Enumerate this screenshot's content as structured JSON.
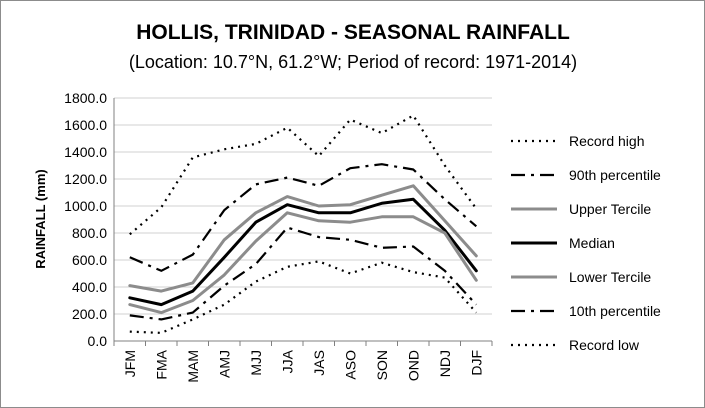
{
  "chart_data": {
    "type": "line",
    "title": "HOLLIS, TRINIDAD - SEASONAL RAINFALL",
    "subtitle": "(Location: 10.7°N, 61.2°W; Period of record: 1971-2014)",
    "xlabel": "",
    "ylabel": "RAINFALL (mm)",
    "ylim": [
      0,
      1800
    ],
    "y_ticks": [
      "0.0",
      "200.0",
      "400.0",
      "600.0",
      "800.0",
      "1000.0",
      "1200.0",
      "1400.0",
      "1600.0",
      "1800.0"
    ],
    "grid": true,
    "legend_position": "right",
    "categories": [
      "JFM",
      "FMA",
      "MAM",
      "AMJ",
      "MJJ",
      "JJA",
      "JAS",
      "ASO",
      "SON",
      "OND",
      "NDJ",
      "DJF"
    ],
    "series": [
      {
        "name": "Record high",
        "style": "dotted",
        "color": "#000000",
        "values": [
          790,
          990,
          1360,
          1420,
          1460,
          1580,
          1370,
          1640,
          1540,
          1670,
          1300,
          980
        ]
      },
      {
        "name": "90th percentile",
        "style": "dashdot",
        "color": "#000000",
        "values": [
          620,
          520,
          640,
          970,
          1160,
          1210,
          1150,
          1280,
          1310,
          1270,
          1050,
          850
        ]
      },
      {
        "name": "Upper Tercile",
        "style": "solid",
        "color": "#8c8c8c",
        "values": [
          410,
          370,
          430,
          750,
          950,
          1070,
          1000,
          1010,
          1080,
          1150,
          890,
          630
        ]
      },
      {
        "name": "Median",
        "style": "solid",
        "color": "#000000",
        "values": [
          320,
          270,
          370,
          620,
          880,
          1010,
          950,
          950,
          1020,
          1050,
          820,
          520
        ]
      },
      {
        "name": "Lower Tercile",
        "style": "solid",
        "color": "#8c8c8c",
        "values": [
          270,
          210,
          300,
          490,
          740,
          950,
          890,
          880,
          920,
          920,
          800,
          450
        ]
      },
      {
        "name": "10th percentile",
        "style": "dashdot",
        "color": "#000000",
        "values": [
          190,
          160,
          210,
          410,
          570,
          840,
          770,
          750,
          690,
          700,
          520,
          270
        ]
      },
      {
        "name": "Record low",
        "style": "dotted",
        "color": "#000000",
        "values": [
          70,
          60,
          160,
          270,
          440,
          550,
          590,
          500,
          580,
          510,
          470,
          210
        ]
      }
    ]
  }
}
